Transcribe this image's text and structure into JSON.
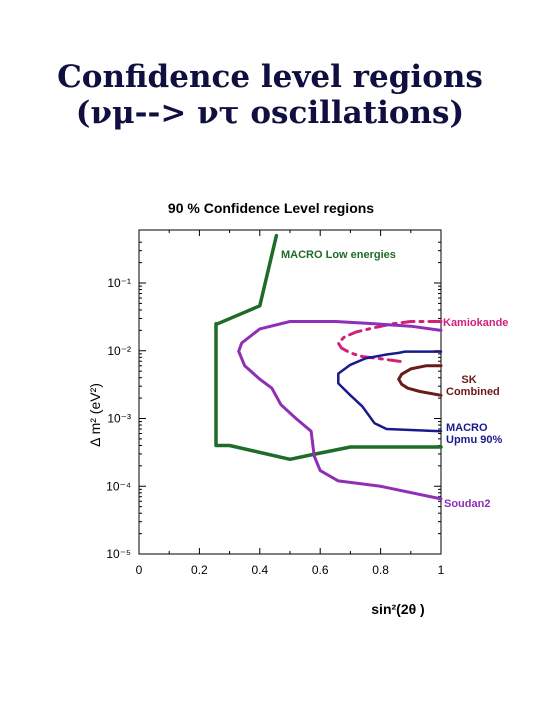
{
  "slide": {
    "title_line1": "Confidence level regions",
    "title_line2": "(νμ--> ντ oscillations)"
  },
  "chart_data": {
    "type": "line",
    "title": "90 %  Confidence Level regions",
    "xlabel": "sin²(2θ  )",
    "ylabel": "Δ  m² (eV²)",
    "xlim": [
      0,
      1
    ],
    "ylim": [
      1e-05,
      0.5
    ],
    "y_scale": "log",
    "x_ticks": [
      {
        "value": 0,
        "label": "0"
      },
      {
        "value": 0.2,
        "label": "0.2"
      },
      {
        "value": 0.4,
        "label": "0.4"
      },
      {
        "value": 0.6,
        "label": "0.6"
      },
      {
        "value": 0.8,
        "label": "0.8"
      },
      {
        "value": 1,
        "label": "1"
      }
    ],
    "y_ticks": [
      {
        "value": 0.1,
        "label": "10⁻¹"
      },
      {
        "value": 0.01,
        "label": "10⁻²"
      },
      {
        "value": 0.001,
        "label": "10⁻³"
      },
      {
        "value": 0.0001,
        "label": "10⁻⁴"
      },
      {
        "value": 1e-05,
        "label": "10⁻⁵"
      }
    ],
    "series": [
      {
        "name": "MACRO  Low  energies",
        "color": "#1f6b2a",
        "dash": "solid",
        "width": 3.5,
        "points": [
          [
            0.455,
            0.5
          ],
          [
            0.4,
            0.046
          ],
          [
            0.26,
            0.025
          ],
          [
            0.255,
            0.025
          ],
          [
            0.255,
            0.0004
          ],
          [
            0.3,
            0.0004
          ],
          [
            0.5,
            0.00025
          ],
          [
            0.57,
            0.00029
          ],
          [
            0.7,
            0.00038
          ],
          [
            1.0,
            0.00038
          ]
        ]
      },
      {
        "name": "Kamiokande",
        "color": "#d0207a",
        "dash": "dashed",
        "width": 3,
        "points": [
          [
            1.0,
            0.027
          ],
          [
            0.96,
            0.027
          ],
          [
            0.9,
            0.027
          ],
          [
            0.84,
            0.025
          ],
          [
            0.78,
            0.022
          ],
          [
            0.72,
            0.019
          ],
          [
            0.68,
            0.016
          ],
          [
            0.66,
            0.013
          ],
          [
            0.67,
            0.011
          ],
          [
            0.7,
            0.0093
          ],
          [
            0.74,
            0.0082
          ],
          [
            0.8,
            0.0076
          ],
          [
            0.84,
            0.0072
          ],
          [
            0.88,
            0.0068
          ]
        ]
      },
      {
        "name": "SK Combined",
        "color": "#6b1a1a",
        "dash": "solid",
        "width": 3,
        "points": [
          [
            1.0,
            0.006
          ],
          [
            0.95,
            0.006
          ],
          [
            0.9,
            0.0054
          ],
          [
            0.87,
            0.0045
          ],
          [
            0.86,
            0.0038
          ],
          [
            0.87,
            0.0032
          ],
          [
            0.89,
            0.0028
          ],
          [
            0.93,
            0.0025
          ],
          [
            1.0,
            0.0022
          ]
        ]
      },
      {
        "name": "MACRO Upmu  90%",
        "color": "#1a1a8c",
        "dash": "solid",
        "width": 2.5,
        "points": [
          [
            1.0,
            0.0097
          ],
          [
            0.88,
            0.0097
          ],
          [
            0.86,
            0.0093
          ],
          [
            0.82,
            0.0088
          ],
          [
            0.75,
            0.0077
          ],
          [
            0.7,
            0.0062
          ],
          [
            0.66,
            0.0046
          ],
          [
            0.66,
            0.0033
          ],
          [
            0.7,
            0.0022
          ],
          [
            0.74,
            0.0015
          ],
          [
            0.78,
            0.00085
          ],
          [
            0.82,
            0.0007
          ],
          [
            1.0,
            0.00065
          ]
        ]
      },
      {
        "name": "Soudan2",
        "color": "#8e2fb5",
        "dash": "solid",
        "width": 3,
        "points": [
          [
            1.0,
            0.02
          ],
          [
            0.9,
            0.023
          ],
          [
            0.78,
            0.025
          ],
          [
            0.65,
            0.027
          ],
          [
            0.5,
            0.027
          ],
          [
            0.4,
            0.021
          ],
          [
            0.34,
            0.013
          ],
          [
            0.33,
            0.0098
          ],
          [
            0.35,
            0.006
          ],
          [
            0.4,
            0.0038
          ],
          [
            0.44,
            0.0028
          ],
          [
            0.47,
            0.0016
          ],
          [
            0.52,
            0.001
          ],
          [
            0.57,
            0.00065
          ],
          [
            0.58,
            0.00028
          ],
          [
            0.6,
            0.00017
          ],
          [
            0.66,
            0.00012
          ],
          [
            0.8,
            0.0001
          ],
          [
            1.0,
            6.5e-05
          ]
        ]
      }
    ],
    "legend_labels": [
      {
        "text": "MACRO  Low  energies",
        "color": "#1f6b2a",
        "align": "start"
      },
      {
        "text": "Kamiokande",
        "color": "#d0207a",
        "align": "start"
      },
      {
        "text": "SK",
        "color": "#6b1a1a",
        "align": "middle"
      },
      {
        "text": "Combined",
        "color": "#6b1a1a",
        "align": "start"
      },
      {
        "text": "MACRO",
        "color": "#1a1a8c",
        "align": "start"
      },
      {
        "text": "Upmu  90%",
        "color": "#1a1a8c",
        "align": "start"
      },
      {
        "text": "Soudan2",
        "color": "#8e2fb5",
        "align": "start"
      }
    ]
  }
}
